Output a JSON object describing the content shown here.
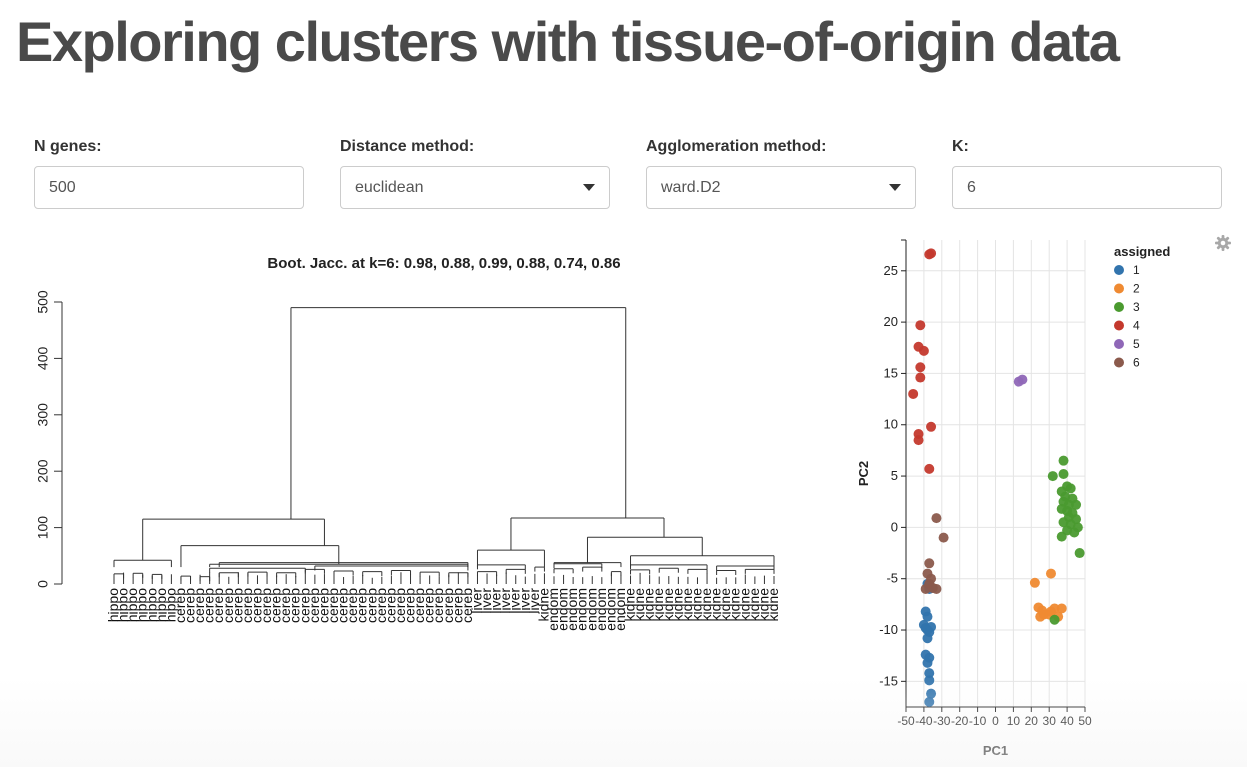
{
  "page": {
    "title": "Exploring clusters with tissue-of-origin data"
  },
  "controls": {
    "n_genes": {
      "label": "N genes:",
      "value": "500"
    },
    "distance": {
      "label": "Distance method:",
      "value": "euclidean"
    },
    "agglomeration": {
      "label": "Agglomeration method:",
      "value": "ward.D2"
    },
    "k": {
      "label": "K:",
      "value": "6"
    }
  },
  "chart_data": [
    {
      "type": "dendrogram",
      "title": "Boot. Jacc. at k=6: 0.98, 0.88, 0.99, 0.88, 0.74, 0.86",
      "ylim": [
        0,
        500
      ],
      "yticks": [
        0,
        100,
        200,
        300,
        400,
        500
      ],
      "leaves": [
        "hippo",
        "hippo",
        "hippo",
        "hippo",
        "hippo",
        "hippo",
        "hippo",
        "cereb",
        "cereb",
        "cereb",
        "cereb",
        "cereb",
        "cereb",
        "cereb",
        "cereb",
        "cereb",
        "cereb",
        "cereb",
        "cereb",
        "cereb",
        "cereb",
        "cereb",
        "cereb",
        "cereb",
        "cereb",
        "cereb",
        "cereb",
        "cereb",
        "cereb",
        "cereb",
        "cereb",
        "cereb",
        "cereb",
        "cereb",
        "cereb",
        "cereb",
        "cereb",
        "cereb",
        "liver",
        "liver",
        "liver",
        "liver",
        "liver",
        "liver",
        "liver",
        "kidne",
        "endom",
        "endom",
        "endom",
        "endom",
        "endom",
        "endom",
        "endom",
        "endom",
        "kidne",
        "kidne",
        "kidne",
        "kidne",
        "kidne",
        "kidne",
        "kidne",
        "kidne",
        "kidne",
        "kidne",
        "kidne",
        "kidne",
        "kidne",
        "kidne",
        "kidne",
        "kidne"
      ],
      "merges": [
        {
          "from": 0,
          "to": 69,
          "height": 490
        },
        {
          "from": 0,
          "to": 37,
          "height": 115
        },
        {
          "from": 38,
          "to": 69,
          "height": 117
        },
        {
          "from": 0,
          "to": 6,
          "height": 42
        },
        {
          "from": 7,
          "to": 37,
          "height": 68
        },
        {
          "from": 38,
          "to": 45,
          "height": 60
        },
        {
          "from": 46,
          "to": 69,
          "height": 83
        },
        {
          "from": 46,
          "to": 53,
          "height": 38
        },
        {
          "from": 54,
          "to": 69,
          "height": 50
        },
        {
          "from": 10,
          "to": 37,
          "height": 35
        }
      ]
    },
    {
      "type": "scatter",
      "xlabel": "PC1",
      "ylabel": "PC2",
      "xlim": [
        -50,
        50
      ],
      "ylim": [
        -17.5,
        28
      ],
      "xticks": [
        -50,
        -40,
        -30,
        -20,
        -10,
        0,
        10,
        20,
        30,
        40,
        50
      ],
      "yticks": [
        -15,
        -10,
        -5,
        0,
        5,
        10,
        15,
        20,
        25
      ],
      "grid": true,
      "legend": {
        "title": "assigned",
        "placement": "right"
      },
      "series": [
        {
          "name": "1",
          "color": "#3274ad",
          "points": [
            [
              -38,
              -5.5
            ],
            [
              -37,
              -6
            ],
            [
              -39,
              -8.2
            ],
            [
              -38,
              -8.7
            ],
            [
              -40,
              -9.5
            ],
            [
              -39,
              -9.8
            ],
            [
              -38,
              -10
            ],
            [
              -37,
              -10.2
            ],
            [
              -36,
              -9.7
            ],
            [
              -38,
              -10.8
            ],
            [
              -39,
              -12.4
            ],
            [
              -37,
              -12.7
            ],
            [
              -38,
              -13.2
            ],
            [
              -37,
              -14.2
            ],
            [
              -37,
              -14.9
            ],
            [
              -36,
              -16.2
            ],
            [
              -37,
              -17
            ]
          ]
        },
        {
          "name": "2",
          "color": "#ef8a32",
          "points": [
            [
              31,
              -4.5
            ],
            [
              22,
              -5.4
            ],
            [
              24,
              -7.8
            ],
            [
              26,
              -8.1
            ],
            [
              27,
              -8.5
            ],
            [
              25,
              -8.7
            ],
            [
              30,
              -8.5
            ],
            [
              33,
              -7.9
            ],
            [
              35,
              -8.7
            ],
            [
              37,
              -7.9
            ],
            [
              31,
              -8.2
            ]
          ]
        },
        {
          "name": "3",
          "color": "#4a9a2f",
          "points": [
            [
              38,
              6.5
            ],
            [
              32,
              5
            ],
            [
              38,
              5.2
            ],
            [
              40,
              4
            ],
            [
              42,
              3.8
            ],
            [
              37,
              3.5
            ],
            [
              39,
              3
            ],
            [
              43,
              2.8
            ],
            [
              38,
              2.5
            ],
            [
              41,
              2.2
            ],
            [
              45,
              2.2
            ],
            [
              37,
              1.8
            ],
            [
              40,
              1.6
            ],
            [
              43,
              1.4
            ],
            [
              41,
              1
            ],
            [
              45,
              0.8
            ],
            [
              38,
              0.5
            ],
            [
              42,
              0.3
            ],
            [
              46,
              0
            ],
            [
              40,
              -0.3
            ],
            [
              44,
              -0.5
            ],
            [
              37,
              -0.9
            ],
            [
              47,
              -2.5
            ],
            [
              33,
              -9
            ]
          ]
        },
        {
          "name": "4",
          "color": "#c4392d",
          "points": [
            [
              -36,
              26.7
            ],
            [
              -37,
              26.6
            ],
            [
              -42,
              19.7
            ],
            [
              -43,
              17.6
            ],
            [
              -40,
              17.2
            ],
            [
              -42,
              15.6
            ],
            [
              -42,
              14.6
            ],
            [
              -46,
              13
            ],
            [
              -36,
              9.8
            ],
            [
              -43,
              9.1
            ],
            [
              -43,
              8.5
            ],
            [
              -37,
              5.7
            ]
          ]
        },
        {
          "name": "5",
          "color": "#8f67b7",
          "points": [
            [
              13,
              14.2
            ],
            [
              15,
              14.4
            ]
          ]
        },
        {
          "name": "6",
          "color": "#8b5a4c",
          "points": [
            [
              -33,
              0.9
            ],
            [
              -29,
              -1
            ],
            [
              -37,
              -3.5
            ],
            [
              -38,
              -4.5
            ],
            [
              -36,
              -5
            ],
            [
              -39,
              -6
            ],
            [
              -37,
              -5.5
            ],
            [
              -35,
              -5.9
            ],
            [
              -33,
              -6
            ]
          ]
        }
      ]
    }
  ]
}
